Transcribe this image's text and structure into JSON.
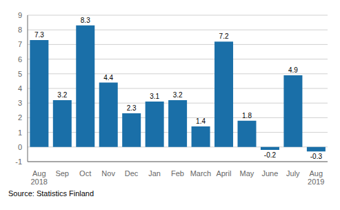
{
  "chart_data": {
    "type": "bar",
    "categories": [
      "Aug\n2018",
      "Sep",
      "Oct",
      "Nov",
      "Dec",
      "Jan",
      "Feb",
      "March",
      "April",
      "May",
      "June",
      "July",
      "Aug\n2019"
    ],
    "values": [
      7.3,
      3.2,
      8.3,
      4.4,
      2.3,
      3.1,
      3.2,
      1.4,
      7.2,
      1.8,
      -0.2,
      4.9,
      -0.3
    ],
    "color": "#1a6fa8",
    "ylim": [
      -1,
      9
    ],
    "yticks": [
      -1,
      0,
      1,
      2,
      3,
      4,
      5,
      6,
      7,
      8,
      9
    ],
    "grid": true,
    "data_labels": true,
    "annotation": "Source: Statistics Finland"
  }
}
